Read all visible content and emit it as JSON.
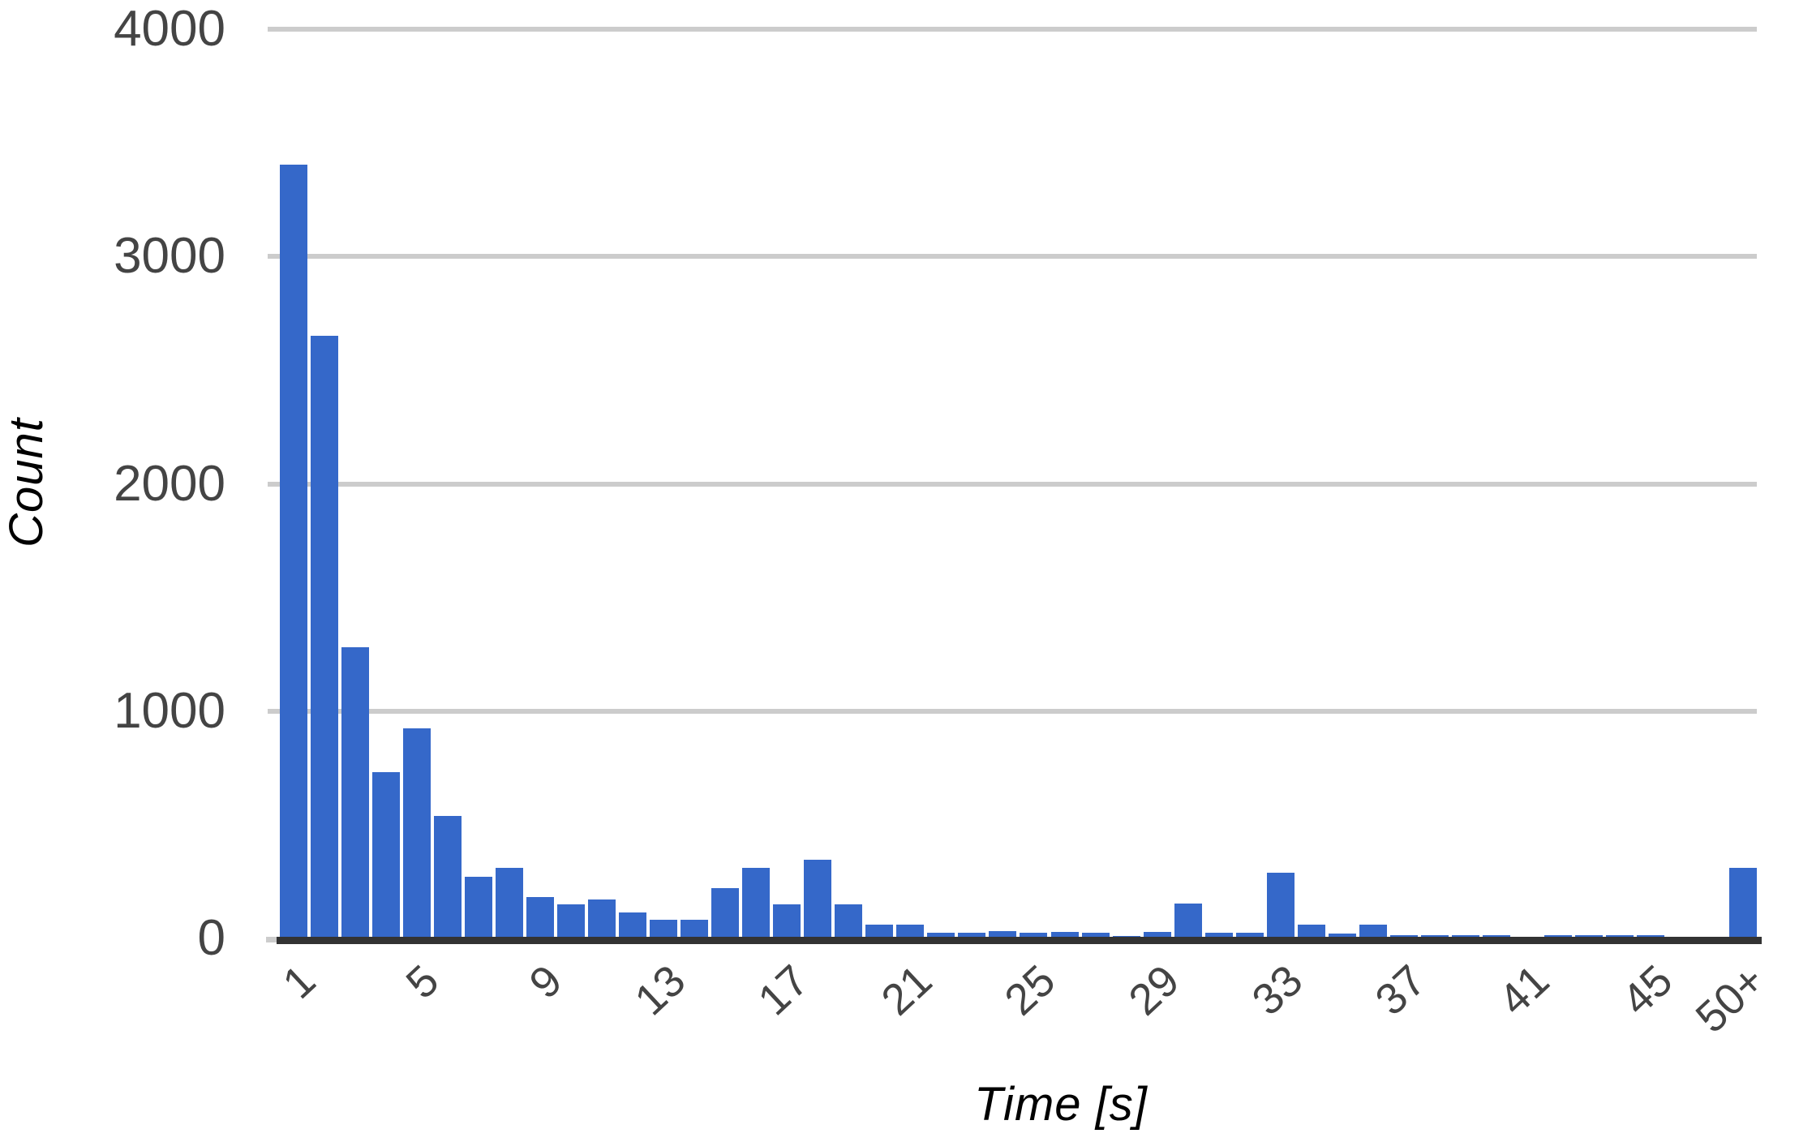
{
  "chart_data": {
    "type": "bar",
    "title": "",
    "ylabel": "Count",
    "xlabel": "Time [s]",
    "categories": [
      "1",
      "2",
      "3",
      "4",
      "5",
      "6",
      "7",
      "8",
      "9",
      "10",
      "11",
      "12",
      "13",
      "14",
      "15",
      "16",
      "17",
      "18",
      "19",
      "20",
      "21",
      "22",
      "23",
      "24",
      "25",
      "26",
      "27",
      "28",
      "29",
      "30",
      "31",
      "32",
      "33",
      "34",
      "35",
      "36",
      "37",
      "38",
      "39",
      "40",
      "41",
      "42",
      "43",
      "44",
      "45",
      "46",
      "47",
      "50+"
    ],
    "values": [
      3405,
      2650,
      1280,
      730,
      925,
      540,
      272,
      310,
      183,
      150,
      172,
      115,
      82,
      82,
      222,
      310,
      150,
      347,
      150,
      61,
      61,
      26,
      26,
      31,
      26,
      28,
      26,
      10,
      28,
      152,
      26,
      26,
      290,
      60,
      22,
      60,
      16,
      16,
      16,
      16,
      0,
      16,
      16,
      16,
      16,
      0,
      0,
      310
    ],
    "x_tick_labels": [
      "1",
      "5",
      "9",
      "13",
      "17",
      "21",
      "25",
      "29",
      "33",
      "37",
      "41",
      "45",
      "50+"
    ],
    "y_tick_labels": [
      "4000",
      "3000",
      "2000",
      "1000",
      "0"
    ],
    "y_ticks": [
      4000,
      3000,
      2000,
      1000,
      0
    ],
    "ylim": [
      0,
      4000
    ],
    "grid": "horizontal",
    "legend_position": "none",
    "colors": {
      "bar": "#3568C9",
      "gridline": "#CCCCCC",
      "axis_line": "#333333",
      "tick_text": "#444444",
      "axis_title_text": "#000000",
      "background": "#FFFFFF"
    }
  }
}
